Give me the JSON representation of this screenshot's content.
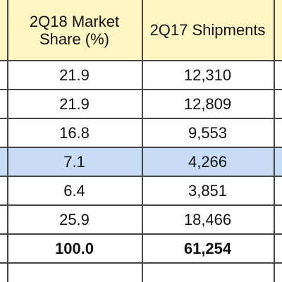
{
  "table": {
    "header": [
      "2Q18 Market Share (%)",
      "2Q17 Shipments"
    ],
    "rows": [
      [
        "21.9",
        "12,310"
      ],
      [
        "21.9",
        "12,809"
      ],
      [
        "16.8",
        "9,553"
      ],
      [
        "7.1",
        "4,266"
      ],
      [
        "6.4",
        "3,851"
      ],
      [
        "25.9",
        "18,466"
      ],
      [
        "100.0",
        "61,254"
      ]
    ]
  }
}
